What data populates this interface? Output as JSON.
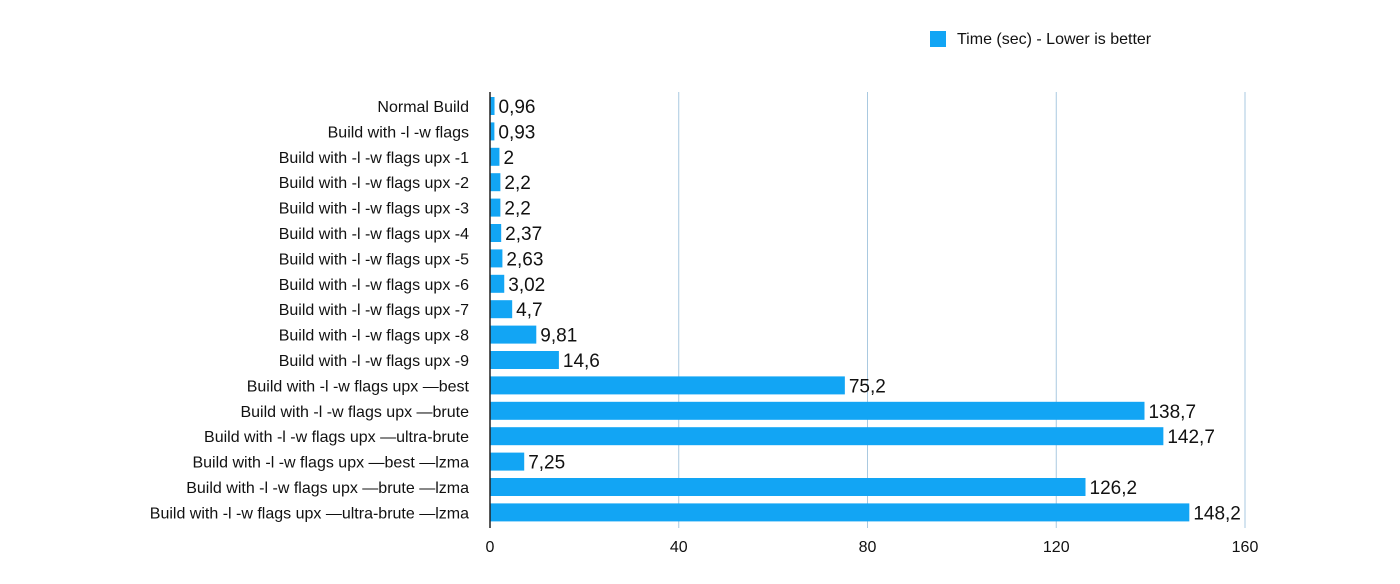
{
  "chart_data": {
    "type": "bar",
    "orientation": "horizontal",
    "categories": [
      "Normal Build",
      "Build with -l -w flags",
      "Build with -l -w flags upx -1",
      "Build with -l -w flags upx -2",
      "Build with -l -w flags upx -3",
      "Build with -l -w flags upx -4",
      "Build with -l -w flags upx -5",
      "Build with -l -w flags upx -6",
      "Build with -l -w flags upx -7",
      "Build with -l -w flags upx -8",
      "Build with -l -w flags upx -9",
      "Build with -l -w flags upx —best",
      "Build with -l -w flags upx —brute",
      "Build with -l -w flags upx —ultra-brute",
      "Build with -l -w flags upx —best —lzma",
      "Build with -l -w flags upx —brute —lzma",
      "Build with -l -w flags upx —ultra-brute —lzma"
    ],
    "series": [
      {
        "name": "Time (sec) - Lower is better",
        "color": "#12a5f4",
        "values": [
          0.96,
          0.93,
          2,
          2.2,
          2.2,
          2.37,
          2.63,
          3.02,
          4.7,
          9.81,
          14.6,
          75.2,
          138.7,
          142.7,
          7.25,
          126.2,
          148.2
        ],
        "value_labels": [
          "0,96",
          "0,93",
          "2",
          "2,2",
          "2,2",
          "2,37",
          "2,63",
          "3,02",
          "4,7",
          "9,81",
          "14,6",
          "75,2",
          "138,7",
          "142,7",
          "7,25",
          "126,2",
          "148,2"
        ]
      }
    ],
    "xlim": [
      0,
      160
    ],
    "xticks": [
      0,
      40,
      80,
      120,
      160
    ],
    "xtick_labels": [
      "0",
      "40",
      "80",
      "120",
      "160"
    ],
    "grid": "vertical",
    "grid_color": "#a9c9e0",
    "axis_color": "#222222",
    "legend_position": "top-right",
    "title": "",
    "xlabel": "",
    "ylabel": ""
  }
}
